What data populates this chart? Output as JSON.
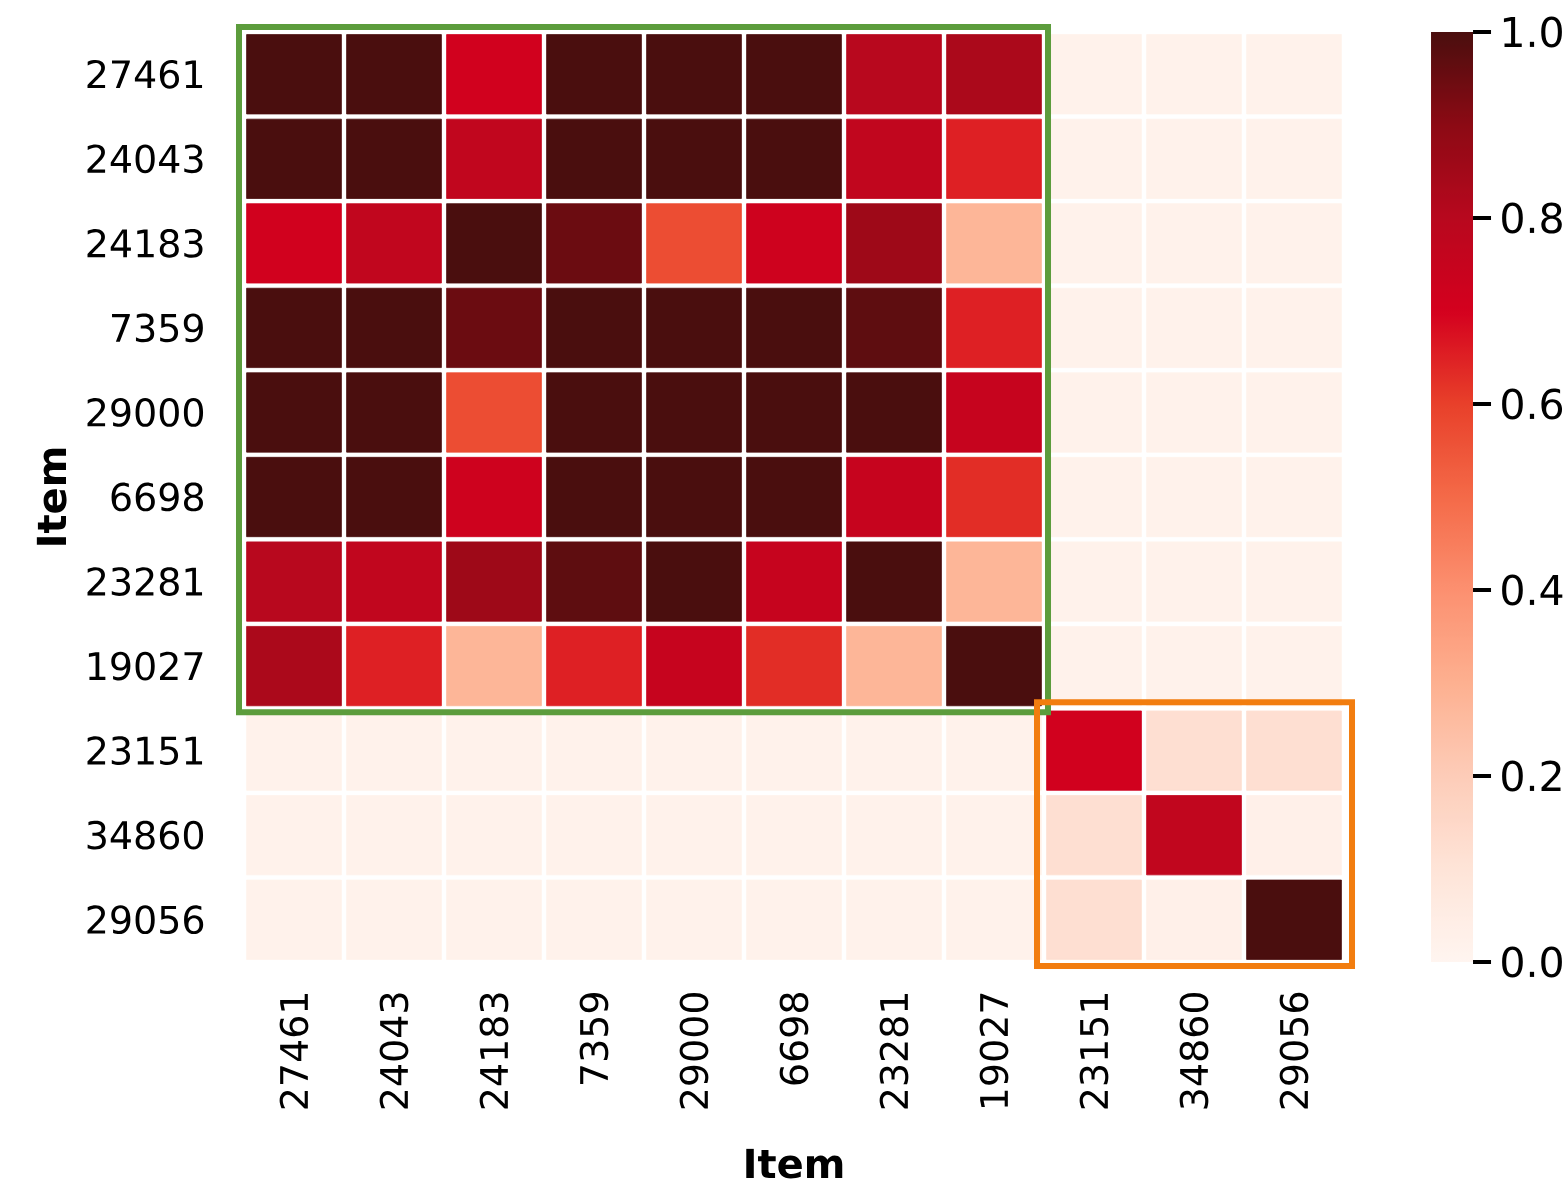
{
  "chart_data": {
    "type": "heatmap",
    "xlabel": "Item",
    "ylabel": "Item",
    "categories": [
      "27461",
      "24043",
      "24183",
      "7359",
      "29000",
      "6698",
      "23281",
      "19027",
      "23151",
      "34860",
      "29056"
    ],
    "y_categories": [
      "27461",
      "24043",
      "24183",
      "7359",
      "29000",
      "6698",
      "23281",
      "19027",
      "23151",
      "34860",
      "29056"
    ],
    "cells": [
      [
        1.0,
        1.0,
        0.71,
        1.0,
        1.0,
        1.0,
        0.8,
        0.83,
        0.02,
        0.02,
        0.02
      ],
      [
        1.0,
        1.0,
        0.77,
        1.0,
        1.0,
        1.0,
        0.77,
        0.65,
        0.02,
        0.02,
        0.02
      ],
      [
        0.71,
        0.77,
        1.0,
        0.95,
        0.57,
        0.72,
        0.86,
        0.28,
        0.02,
        0.02,
        0.02
      ],
      [
        1.0,
        1.0,
        0.95,
        1.0,
        1.0,
        1.0,
        0.97,
        0.65,
        0.02,
        0.02,
        0.02
      ],
      [
        1.0,
        1.0,
        0.57,
        1.0,
        1.0,
        1.0,
        1.0,
        0.75,
        0.02,
        0.02,
        0.02
      ],
      [
        1.0,
        1.0,
        0.72,
        1.0,
        1.0,
        1.0,
        0.75,
        0.63,
        0.02,
        0.02,
        0.02
      ],
      [
        0.8,
        0.77,
        0.86,
        0.97,
        1.0,
        0.75,
        1.0,
        0.28,
        0.02,
        0.02,
        0.02
      ],
      [
        0.83,
        0.65,
        0.28,
        0.65,
        0.75,
        0.63,
        0.28,
        1.0,
        0.02,
        0.02,
        0.02
      ],
      [
        0.02,
        0.02,
        0.02,
        0.02,
        0.02,
        0.02,
        0.02,
        0.02,
        0.71,
        0.12,
        0.12
      ],
      [
        0.02,
        0.02,
        0.02,
        0.02,
        0.02,
        0.02,
        0.02,
        0.02,
        0.12,
        0.77,
        0.03
      ],
      [
        0.02,
        0.02,
        0.02,
        0.02,
        0.02,
        0.02,
        0.02,
        0.02,
        0.12,
        0.03,
        1.0
      ]
    ],
    "clim": [
      0,
      1
    ],
    "cticks": [
      {
        "value": 0,
        "label": "0.0"
      },
      {
        "value": 0.2,
        "label": "0.2"
      },
      {
        "value": 0.4,
        "label": "0.4"
      },
      {
        "value": 0.6,
        "label": "0.6"
      },
      {
        "value": 0.8,
        "label": "0.8"
      },
      {
        "value": 1,
        "label": "1.0"
      }
    ]
  }
}
